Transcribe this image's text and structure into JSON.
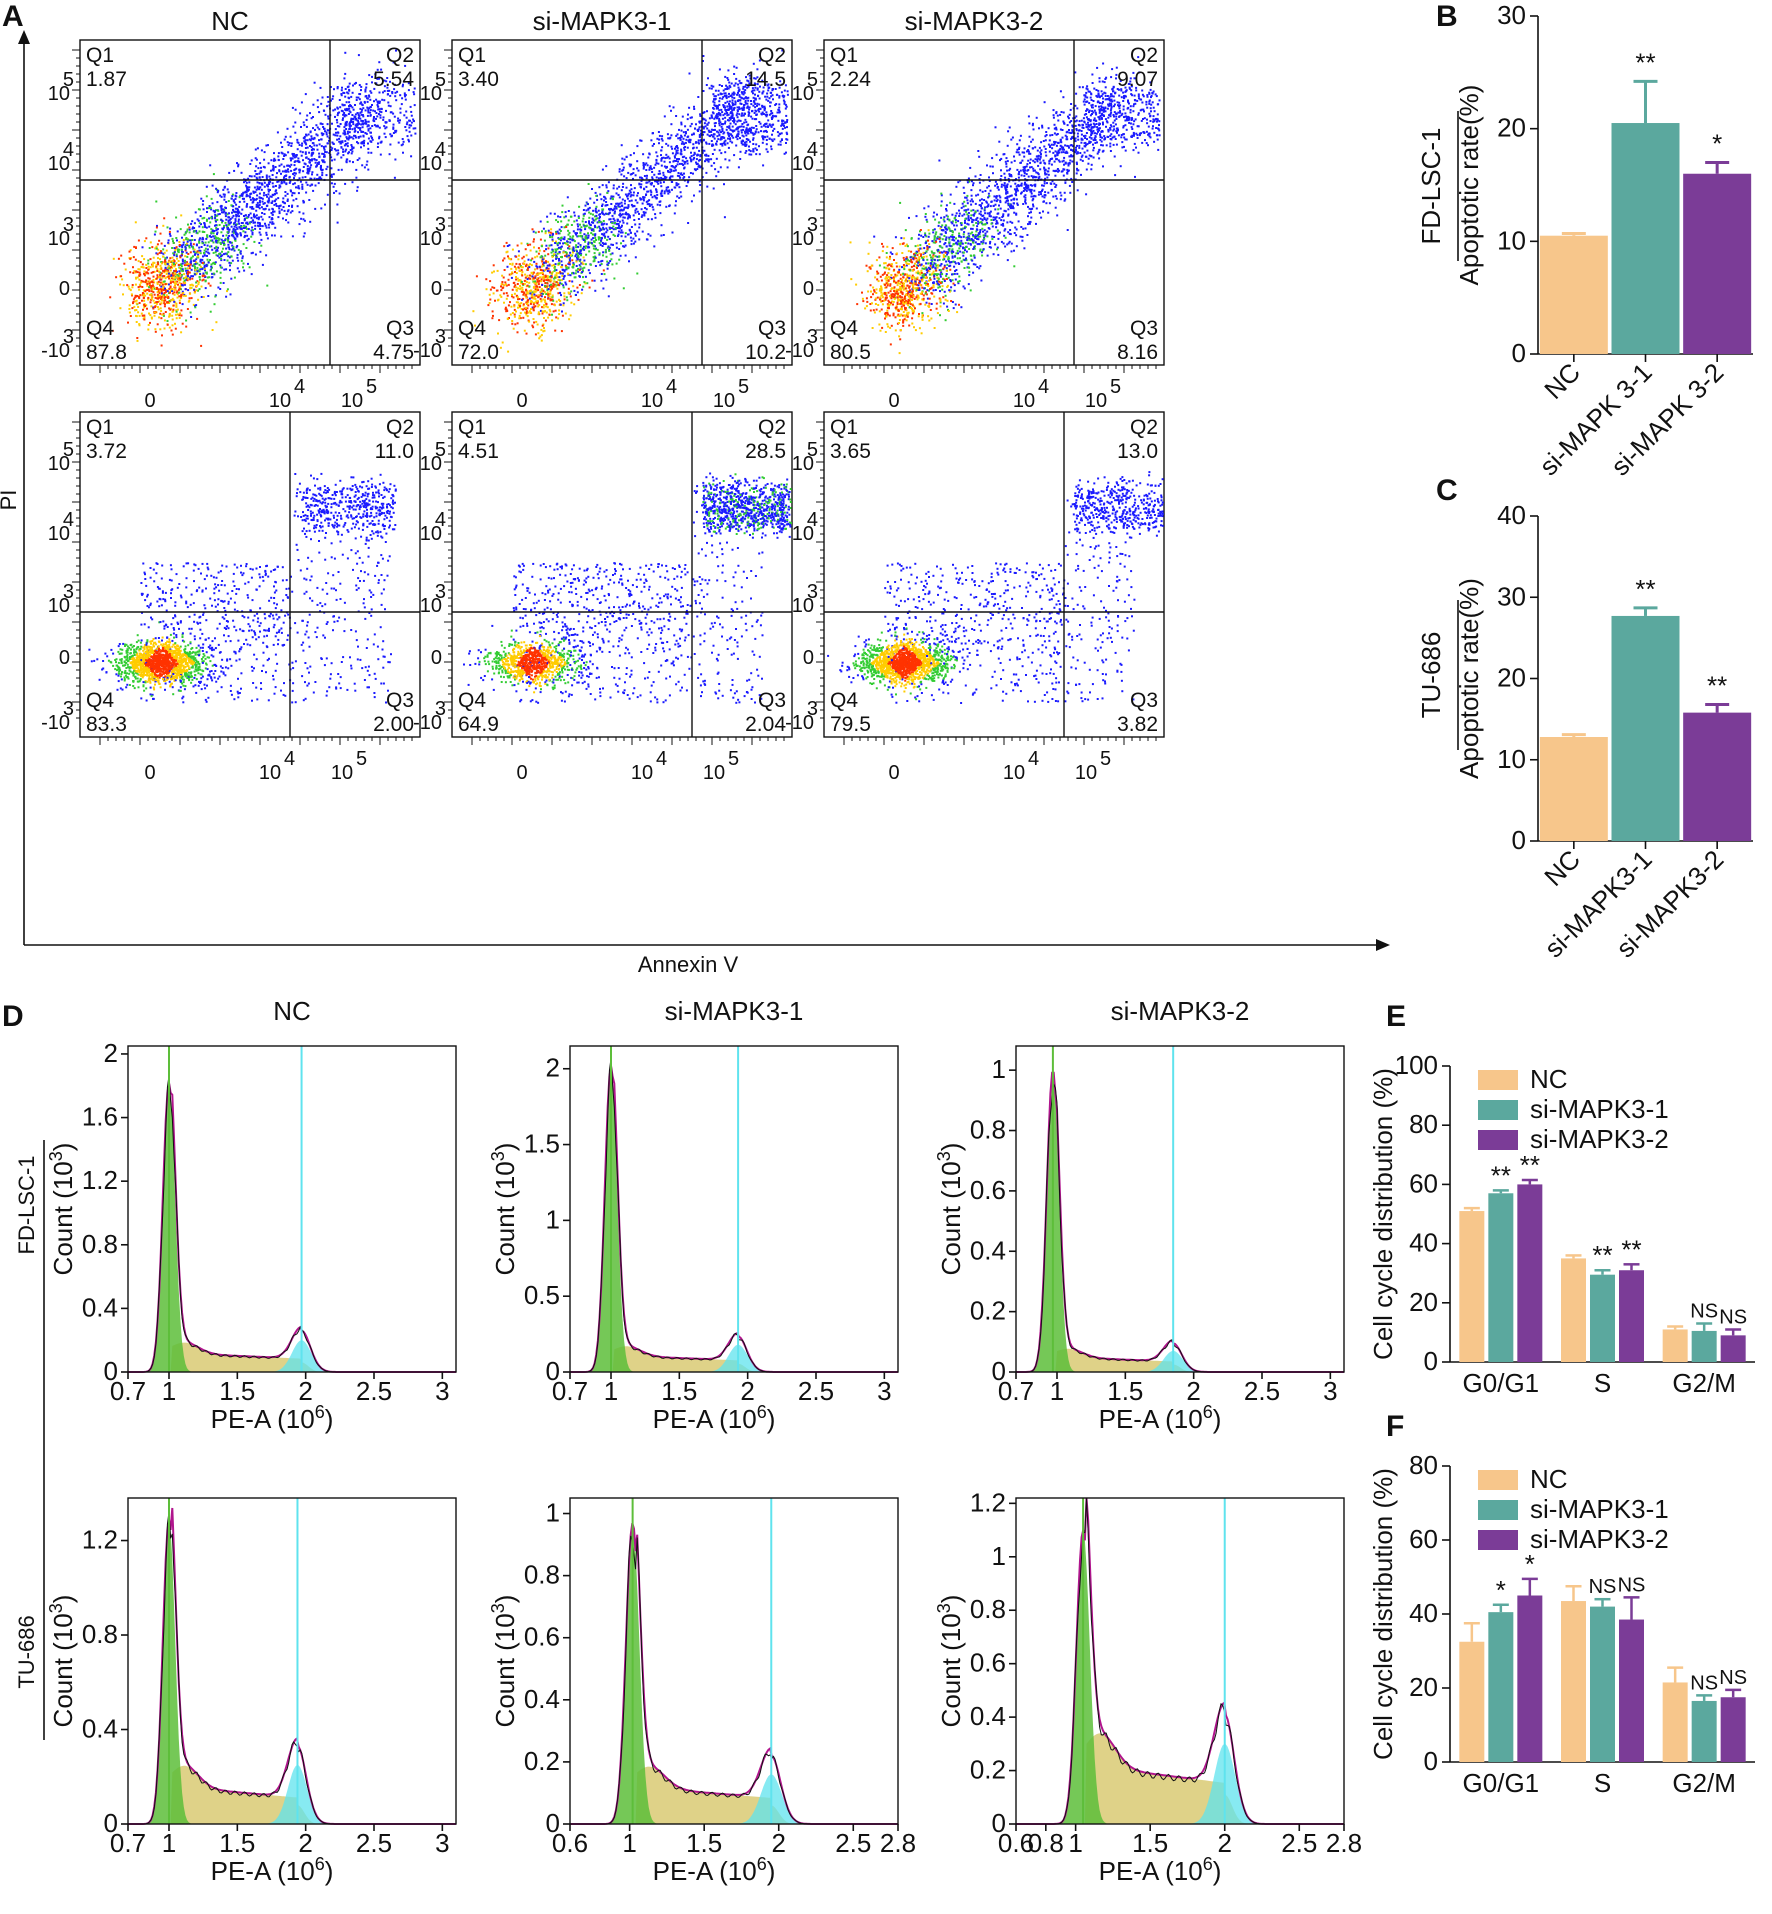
{
  "panels": {
    "A": "A",
    "B": "B",
    "C": "C",
    "D": "D",
    "E": "E",
    "F": "F"
  },
  "cell_lines": [
    "FD-LSC-1",
    "TU-686"
  ],
  "groups": [
    "NC",
    "si-MAPK3-1",
    "si-MAPK3-2"
  ],
  "groups_spaced": [
    "NC",
    "si-MAPK 3-1",
    "si-MAPK 3-2"
  ],
  "colors": {
    "nc": "#F7C68B",
    "si1": "#5BA89E",
    "si2": "#7B3C97",
    "g1": "#5DBE3A",
    "g2": "#5FE3EE",
    "sphase": "#D7C76A",
    "fit": "#B0158D"
  },
  "chart_data": [
    {
      "type": "scatter",
      "panel": "A",
      "title": "Annexin V / PI flow cytometry",
      "xlabel": "Annexin V",
      "ylabel": "PI",
      "x_ticks": [
        "0",
        "10",
        "10"
      ],
      "x_tick_exps": [
        "",
        "4",
        "5"
      ],
      "y_ticks": [
        "-10",
        "0",
        "10",
        "10",
        "10"
      ],
      "y_tick_exps": [
        "3",
        "",
        "3",
        "4",
        "5"
      ],
      "quadrant_labels": [
        "Q1",
        "Q2",
        "Q3",
        "Q4"
      ],
      "rows": [
        {
          "cell_line": "FD-LSC-1",
          "plots": [
            {
              "group": "NC",
              "Q1": "1.87",
              "Q2": "5.54",
              "Q3": "4.75",
              "Q4": "87.8"
            },
            {
              "group": "si-MAPK3-1",
              "Q1": "3.40",
              "Q2": "14.5",
              "Q3": "10.2",
              "Q4": "72.0"
            },
            {
              "group": "si-MAPK3-2",
              "Q1": "2.24",
              "Q2": "9.07",
              "Q3": "8.16",
              "Q4": "80.5"
            }
          ]
        },
        {
          "cell_line": "TU-686",
          "plots": [
            {
              "group": "NC",
              "Q1": "3.72",
              "Q2": "11.0",
              "Q3": "2.00",
              "Q4": "83.3"
            },
            {
              "group": "si-MAPK3-1",
              "Q1": "4.51",
              "Q2": "28.5",
              "Q3": "2.04",
              "Q4": "64.9"
            },
            {
              "group": "si-MAPK3-2",
              "Q1": "3.65",
              "Q2": "13.0",
              "Q3": "3.82",
              "Q4": "79.5"
            }
          ]
        }
      ]
    },
    {
      "type": "bar",
      "panel": "B",
      "cell_line": "FD-LSC-1",
      "categories": [
        "NC",
        "si-MAPK 3-1",
        "si-MAPK 3-2"
      ],
      "values": [
        10.5,
        20.5,
        16.0
      ],
      "errors": [
        0.2,
        3.7,
        1.0
      ],
      "significance": [
        "",
        "**",
        "*"
      ],
      "ylabel": "Apoptotic rate(%)",
      "ylim": [
        0,
        30
      ],
      "yticks": [
        0,
        10,
        20,
        30
      ]
    },
    {
      "type": "bar",
      "panel": "C",
      "cell_line": "TU-686",
      "categories": [
        "NC",
        "si-MAPK3-1",
        "si-MAPK3-2"
      ],
      "values": [
        12.8,
        27.7,
        15.8
      ],
      "errors": [
        0.3,
        1.0,
        1.0
      ],
      "significance": [
        "",
        "**",
        "**"
      ],
      "ylabel": "Apoptotic rate(%)",
      "ylim": [
        0,
        40
      ],
      "yticks": [
        0,
        10,
        20,
        30,
        40
      ]
    },
    {
      "type": "area",
      "panel": "D",
      "title": "Cell cycle DNA content histograms",
      "xlabel": "PE-A (10",
      "xlabel_exp": "6",
      "xlabel_close": ")",
      "ylabel": "Count (10",
      "ylabel_exp": "3",
      "ylabel_close": ")",
      "rows": [
        {
          "cell_line": "FD-LSC-1",
          "plots": [
            {
              "group": "NC",
              "xlim": [
                0.7,
                3.1
              ],
              "xticks": [
                "0.7",
                "1",
                "1.5",
                "2",
                "2.5",
                "3"
              ],
              "xtick_vals": [
                0.7,
                1,
                1.5,
                2,
                2.5,
                3
              ],
              "ylim": [
                0,
                2.05
              ],
              "yticks": [
                "0",
                "0.4",
                "0.8",
                "1.2",
                "1.6",
                "2"
              ],
              "ytick_vals": [
                0,
                0.4,
                0.8,
                1.2,
                1.6,
                2
              ],
              "g1_peak": 1.0,
              "g1_height": 1.82,
              "g2_peak": 1.97,
              "g2_height": 0.2,
              "s_level": 0.12
            },
            {
              "group": "si-MAPK3-1",
              "xlim": [
                0.7,
                3.1
              ],
              "xticks": [
                "0.7",
                "1",
                "1.5",
                "2",
                "2.5",
                "3"
              ],
              "xtick_vals": [
                0.7,
                1,
                1.5,
                2,
                2.5,
                3
              ],
              "ylim": [
                0,
                2.15
              ],
              "yticks": [
                "0",
                "0.5",
                "1",
                "1.5",
                "2"
              ],
              "ytick_vals": [
                0,
                0.5,
                1,
                1.5,
                2
              ],
              "g1_peak": 1.0,
              "g1_height": 2.02,
              "g2_peak": 1.93,
              "g2_height": 0.18,
              "s_level": 0.11
            },
            {
              "group": "si-MAPK3-2",
              "xlim": [
                0.7,
                3.1
              ],
              "xticks": [
                "0.7",
                "1",
                "1.5",
                "2",
                "2.5",
                "3"
              ],
              "xtick_vals": [
                0.7,
                1,
                1.5,
                2,
                2.5,
                3
              ],
              "ylim": [
                0,
                1.08
              ],
              "yticks": [
                "0",
                "0.2",
                "0.4",
                "0.6",
                "0.8",
                "1"
              ],
              "ytick_vals": [
                0,
                0.2,
                0.4,
                0.6,
                0.8,
                1
              ],
              "g1_peak": 0.97,
              "g1_height": 1.0,
              "g2_peak": 1.85,
              "g2_height": 0.07,
              "s_level": 0.05
            }
          ]
        },
        {
          "cell_line": "TU-686",
          "plots": [
            {
              "group": "NC",
              "xlim": [
                0.7,
                3.1
              ],
              "xticks": [
                "0.7",
                "1",
                "1.5",
                "2",
                "2.5",
                "3"
              ],
              "xtick_vals": [
                0.7,
                1,
                1.5,
                2,
                2.5,
                3
              ],
              "ylim": [
                0,
                1.38
              ],
              "yticks": [
                "0",
                "0.4",
                "0.8",
                "1.2"
              ],
              "ytick_vals": [
                0,
                0.4,
                0.8,
                1.2
              ],
              "g1_peak": 1.0,
              "g1_height": 1.29,
              "g2_peak": 1.94,
              "g2_height": 0.25,
              "s_level": 0.16
            },
            {
              "group": "si-MAPK3-1",
              "xlim": [
                0.6,
                2.8
              ],
              "xticks": [
                "0.6",
                "1",
                "1.5",
                "2",
                "2.5",
                "2.8"
              ],
              "xtick_vals": [
                0.6,
                1,
                1.5,
                2,
                2.5,
                2.8
              ],
              "ylim": [
                0,
                1.05
              ],
              "yticks": [
                "0",
                "0.2",
                "0.4",
                "0.6",
                "0.8",
                "1"
              ],
              "ytick_vals": [
                0,
                0.2,
                0.4,
                0.6,
                0.8,
                1
              ],
              "g1_peak": 1.02,
              "g1_height": 0.97,
              "g2_peak": 1.95,
              "g2_height": 0.16,
              "s_level": 0.12
            },
            {
              "group": "si-MAPK3-2",
              "xlim": [
                0.6,
                2.8
              ],
              "xticks": [
                "0.6",
                "0.8",
                "1",
                "1.5",
                "2",
                "2.5",
                "2.8"
              ],
              "xtick_vals": [
                0.6,
                0.8,
                1,
                1.5,
                2,
                2.5,
                2.8
              ],
              "ylim": [
                0,
                1.22
              ],
              "yticks": [
                "0",
                "0.2",
                "0.4",
                "0.6",
                "0.8",
                "1",
                "1.2"
              ],
              "ytick_vals": [
                0,
                0.2,
                0.4,
                0.6,
                0.8,
                1,
                1.2
              ],
              "g1_peak": 1.05,
              "g1_height": 1.1,
              "g2_peak": 2.0,
              "g2_height": 0.3,
              "s_level": 0.22
            }
          ]
        }
      ]
    },
    {
      "type": "bar",
      "panel": "E",
      "cell_line": "FD-LSC-1",
      "categories": [
        "G0/G1",
        "S",
        "G2/M"
      ],
      "series": [
        {
          "name": "NC",
          "values": [
            51,
            35,
            11
          ],
          "errors": [
            1.0,
            1.0,
            1.0
          ]
        },
        {
          "name": "si-MAPK3-1",
          "values": [
            57,
            29.5,
            10.5
          ],
          "errors": [
            1.0,
            1.5,
            2.5
          ]
        },
        {
          "name": "si-MAPK3-2",
          "values": [
            60,
            31,
            9
          ],
          "errors": [
            1.5,
            2.0,
            2.0
          ]
        }
      ],
      "significance": [
        [
          "",
          "**",
          "**"
        ],
        [
          "",
          "**",
          "**"
        ],
        [
          "",
          "NS",
          "NS"
        ]
      ],
      "ylabel": "Cell cycle distribution (%)",
      "ylim": [
        0,
        100
      ],
      "yticks": [
        0,
        20,
        40,
        60,
        80,
        100
      ]
    },
    {
      "type": "bar",
      "panel": "F",
      "cell_line": "TU-686",
      "categories": [
        "G0/G1",
        "S",
        "G2/M"
      ],
      "series": [
        {
          "name": "NC",
          "values": [
            32.5,
            43.5,
            21.5
          ],
          "errors": [
            5.0,
            4.0,
            4.0
          ]
        },
        {
          "name": "si-MAPK3-1",
          "values": [
            40.5,
            42,
            16.5
          ],
          "errors": [
            2.0,
            2.0,
            1.5
          ]
        },
        {
          "name": "si-MAPK3-2",
          "values": [
            45,
            38.5,
            17.5
          ],
          "errors": [
            4.5,
            6.0,
            2.0
          ]
        }
      ],
      "significance": [
        [
          "",
          "*",
          "*"
        ],
        [
          "",
          "NS",
          "NS"
        ],
        [
          "",
          "NS",
          "NS"
        ]
      ],
      "ylabel": "Cell cycle distribution (%)",
      "ylim": [
        0,
        80
      ],
      "yticks": [
        0,
        20,
        40,
        60,
        80
      ]
    }
  ]
}
